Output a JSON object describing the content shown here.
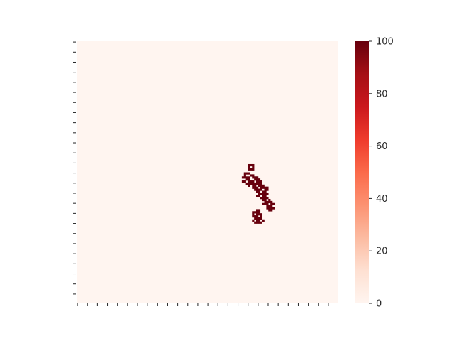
{
  "chart_data": {
    "type": "heatmap",
    "title": "",
    "xlabel": "",
    "ylabel": "",
    "x_tick_count": 26,
    "y_tick_count": 26,
    "x_tick_labels_visible": false,
    "y_tick_labels_visible": false,
    "grid_shape": [
      128,
      128
    ],
    "colormap": "Reds",
    "colormap_stops": [
      "#fff5f0",
      "#fee0d2",
      "#fcbba1",
      "#fc9272",
      "#fb6a4a",
      "#ef3b2c",
      "#cb181d",
      "#a50f15",
      "#67000d"
    ],
    "vmin": 0,
    "vmax": 100,
    "colorbar": {
      "ticks": [
        {
          "value": 0,
          "label": "0"
        },
        {
          "value": 20,
          "label": "20"
        },
        {
          "value": 40,
          "label": "40"
        },
        {
          "value": 60,
          "label": "60"
        },
        {
          "value": 80,
          "label": "80"
        },
        {
          "value": 100,
          "label": "100"
        }
      ]
    },
    "background_value": 0,
    "cluster_value": 100,
    "cluster_cells_row_col": [
      [
        60,
        84
      ],
      [
        60,
        85
      ],
      [
        60,
        86
      ],
      [
        61,
        84
      ],
      [
        61,
        86
      ],
      [
        62,
        84
      ],
      [
        62,
        85
      ],
      [
        62,
        86
      ],
      [
        64,
        82
      ],
      [
        64,
        83
      ],
      [
        64,
        84
      ],
      [
        65,
        82
      ],
      [
        65,
        85
      ],
      [
        65,
        86
      ],
      [
        66,
        81
      ],
      [
        66,
        82
      ],
      [
        66,
        83
      ],
      [
        66,
        84
      ],
      [
        66,
        86
      ],
      [
        66,
        87
      ],
      [
        66,
        88
      ],
      [
        67,
        83
      ],
      [
        67,
        84
      ],
      [
        67,
        87
      ],
      [
        67,
        88
      ],
      [
        67,
        89
      ],
      [
        68,
        81
      ],
      [
        68,
        82
      ],
      [
        68,
        84
      ],
      [
        68,
        85
      ],
      [
        68,
        86
      ],
      [
        68,
        88
      ],
      [
        68,
        89
      ],
      [
        68,
        90
      ],
      [
        69,
        83
      ],
      [
        69,
        84
      ],
      [
        69,
        85
      ],
      [
        69,
        86
      ],
      [
        69,
        87
      ],
      [
        69,
        88
      ],
      [
        69,
        89
      ],
      [
        69,
        90
      ],
      [
        70,
        84
      ],
      [
        70,
        86
      ],
      [
        70,
        87
      ],
      [
        70,
        89
      ],
      [
        70,
        90
      ],
      [
        70,
        91
      ],
      [
        71,
        86
      ],
      [
        71,
        87
      ],
      [
        71,
        88
      ],
      [
        71,
        90
      ],
      [
        71,
        91
      ],
      [
        71,
        92
      ],
      [
        71,
        93
      ],
      [
        72,
        87
      ],
      [
        72,
        88
      ],
      [
        72,
        89
      ],
      [
        72,
        90
      ],
      [
        72,
        92
      ],
      [
        72,
        93
      ],
      [
        73,
        88
      ],
      [
        73,
        89
      ],
      [
        73,
        91
      ],
      [
        73,
        92
      ],
      [
        74,
        89
      ],
      [
        74,
        90
      ],
      [
        74,
        91
      ],
      [
        74,
        92
      ],
      [
        74,
        93
      ],
      [
        75,
        88
      ],
      [
        75,
        89
      ],
      [
        75,
        91
      ],
      [
        75,
        92
      ],
      [
        76,
        90
      ],
      [
        76,
        91
      ],
      [
        76,
        92
      ],
      [
        76,
        93
      ],
      [
        77,
        91
      ],
      [
        77,
        92
      ],
      [
        77,
        94
      ],
      [
        78,
        92
      ],
      [
        78,
        93
      ],
      [
        78,
        94
      ],
      [
        78,
        95
      ],
      [
        79,
        91
      ],
      [
        79,
        92
      ],
      [
        79,
        93
      ],
      [
        79,
        95
      ],
      [
        79,
        96
      ],
      [
        80,
        93
      ],
      [
        80,
        94
      ],
      [
        80,
        95
      ],
      [
        81,
        93
      ],
      [
        81,
        94
      ],
      [
        81,
        95
      ],
      [
        81,
        96
      ],
      [
        82,
        94
      ],
      [
        82,
        95
      ],
      [
        82,
        88
      ],
      [
        82,
        89
      ],
      [
        83,
        86
      ],
      [
        83,
        87
      ],
      [
        83,
        88
      ],
      [
        83,
        89
      ],
      [
        84,
        86
      ],
      [
        84,
        88
      ],
      [
        84,
        89
      ],
      [
        84,
        90
      ],
      [
        85,
        86
      ],
      [
        85,
        87
      ],
      [
        85,
        88
      ],
      [
        85,
        90
      ],
      [
        86,
        87
      ],
      [
        86,
        88
      ],
      [
        86,
        89
      ],
      [
        86,
        90
      ],
      [
        87,
        86
      ],
      [
        87,
        88
      ],
      [
        87,
        89
      ],
      [
        87,
        91
      ],
      [
        88,
        87
      ],
      [
        88,
        88
      ],
      [
        88,
        89
      ],
      [
        88,
        90
      ]
    ]
  }
}
